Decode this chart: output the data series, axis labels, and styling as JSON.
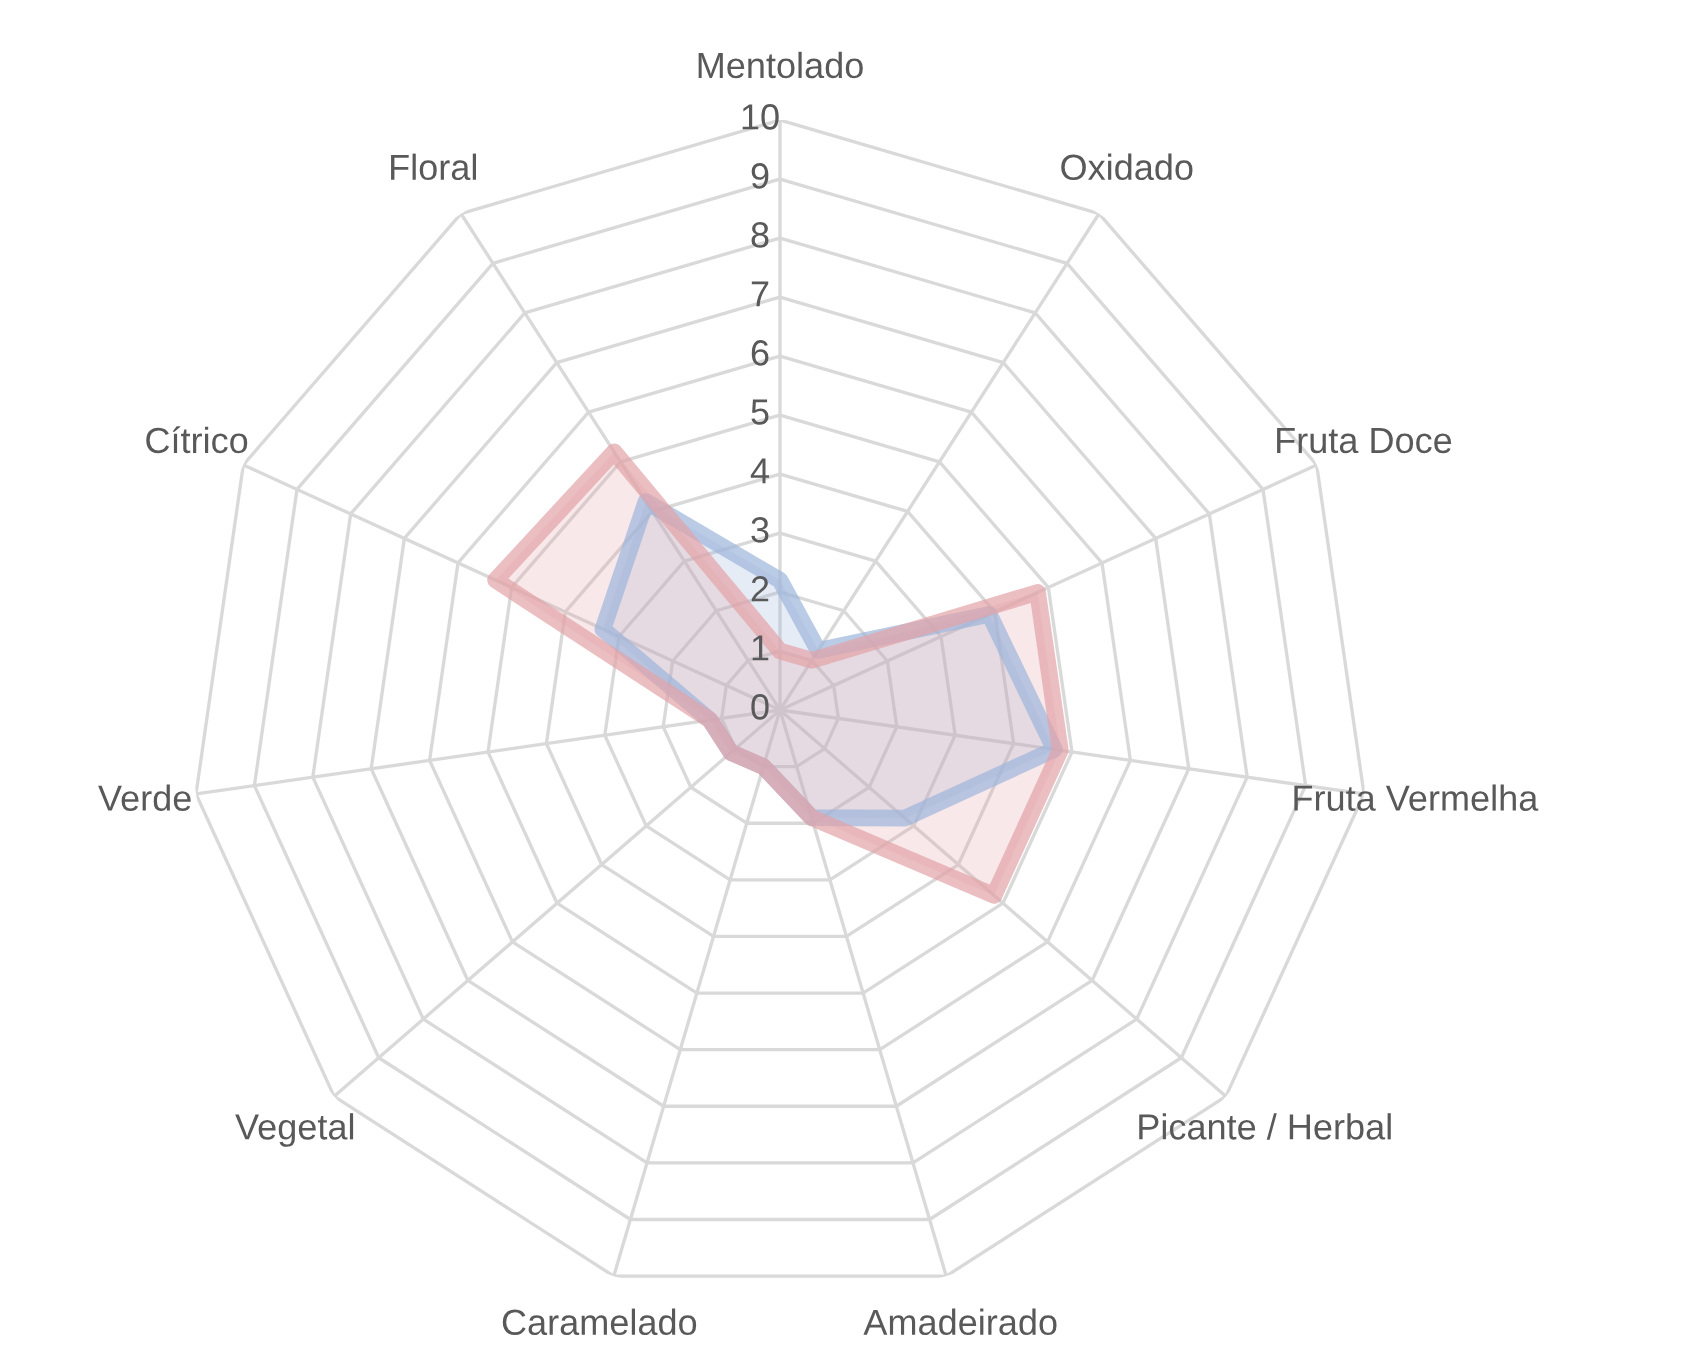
{
  "chart_data": {
    "type": "radar",
    "categories": [
      "Mentolado",
      "Oxidado",
      "Fruta Doce",
      "Fruta Vermelha",
      "Picante / Herbal",
      "Amadeirado",
      "Caramelado",
      "Vegetal",
      "Verde",
      "Cítrico",
      "Floral"
    ],
    "series": [
      {
        "color": "#9db5dc",
        "values": [
          2.2,
          1.2,
          3.9,
          4.7,
          2.8,
          1.9,
          1,
          1.1,
          1.2,
          3.3,
          4.2
        ]
      },
      {
        "color": "#e3a3a6",
        "values": [
          1,
          1,
          4.8,
          4.8,
          4.8,
          1.9,
          1,
          1.1,
          1.2,
          5.3,
          5.2
        ]
      }
    ],
    "ylim": [
      0,
      10
    ],
    "yticks": [
      0,
      1,
      2,
      3,
      4,
      5,
      6,
      7,
      8,
      9,
      10
    ],
    "grid": true
  }
}
